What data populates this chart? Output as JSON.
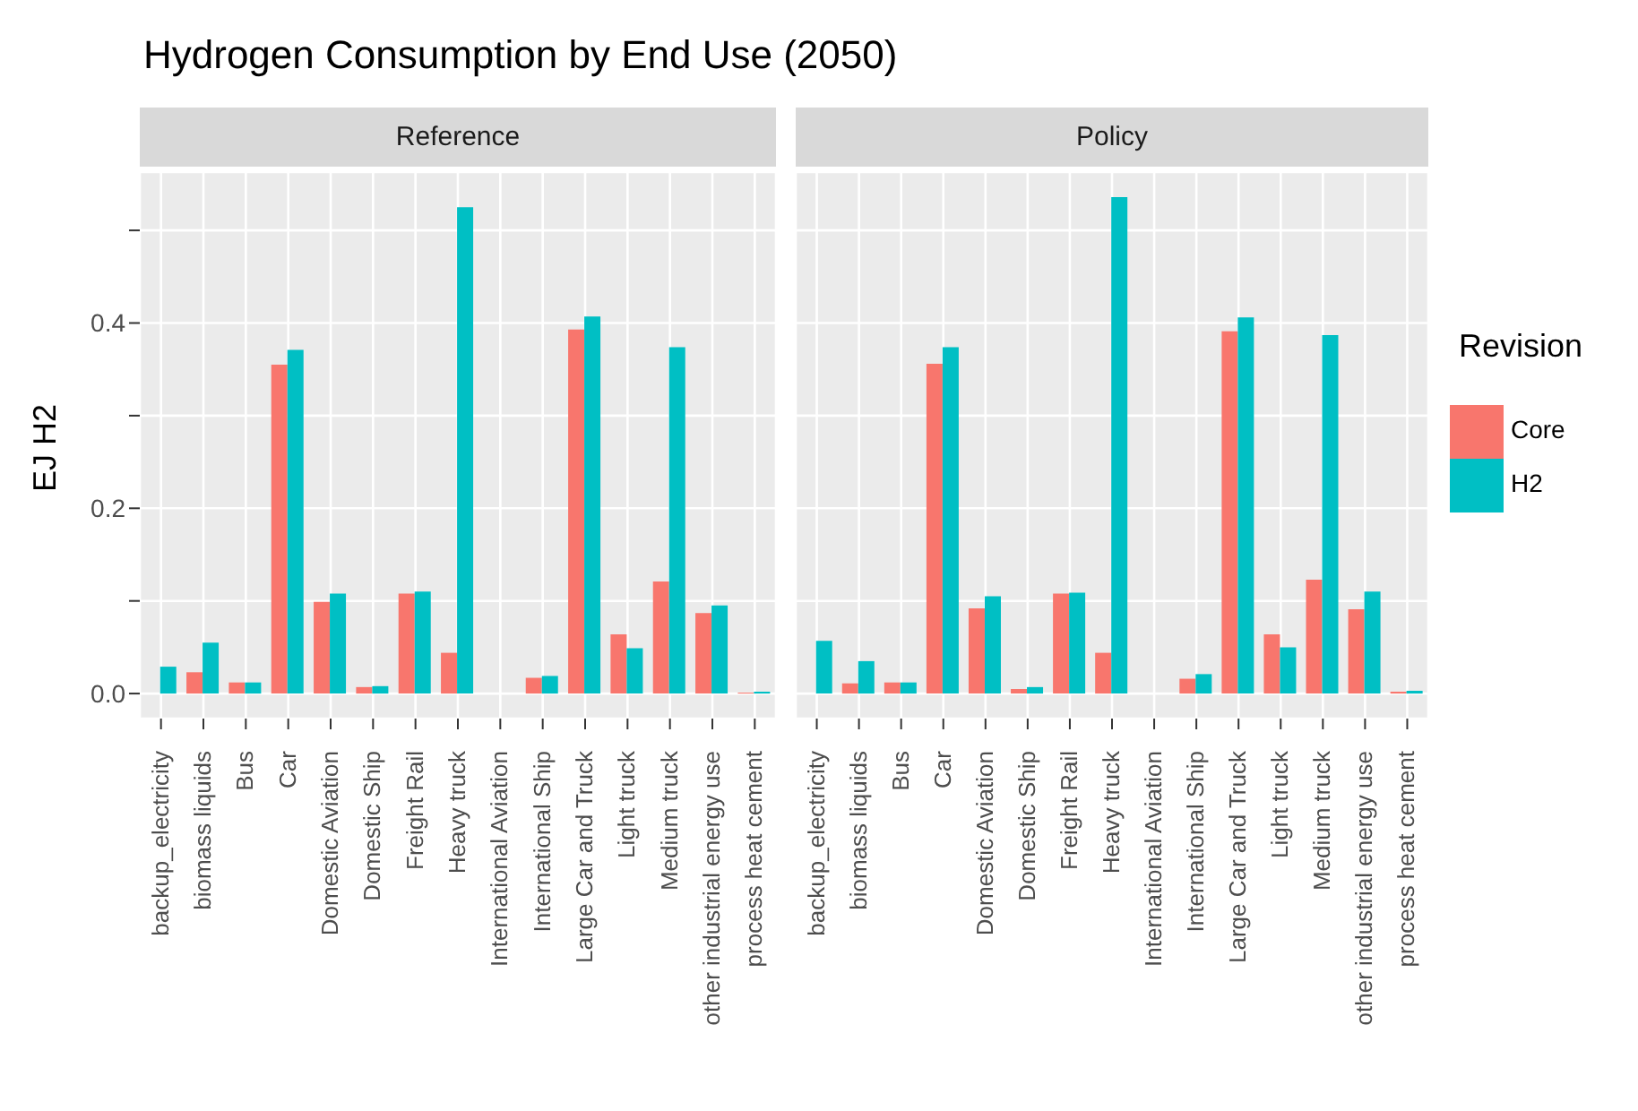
{
  "chart_data": [
    {
      "type": "bar",
      "title": "Hydrogen Consumption by End Use (2050)",
      "subtitle": "Reference",
      "ylabel": "EJ H2",
      "categories": [
        "backup_electricity",
        "biomass liquids",
        "Bus",
        "Car",
        "Domestic Aviation",
        "Domestic Ship",
        "Freight Rail",
        "Heavy truck",
        "International Aviation",
        "International Ship",
        "Large Car and Truck",
        "Light truck",
        "Medium truck",
        "other industrial energy use",
        "process heat cement"
      ],
      "series": [
        {
          "color": "#f8766d",
          "values": [
            null,
            0.023,
            0.012,
            0.355,
            0.099,
            0.007,
            0.108,
            0.044,
            0,
            0.017,
            0.393,
            0.064,
            0.121,
            0.087,
            0.001
          ]
        },
        {
          "color": "#00bfc4",
          "values": [
            0.029,
            0.055,
            0.012,
            0.371,
            0.108,
            0.008,
            0.11,
            0.525,
            0,
            0.019,
            0.407,
            0.049,
            0.374,
            0.095,
            0.002
          ]
        }
      ],
      "ylim": [
        -0.027,
        0.563
      ],
      "yticks": [
        {
          "value": 0,
          "label": "0.0"
        },
        {
          "value": 0.1,
          "label": null
        },
        0.2,
        {
          "value": 0.3,
          "label": null
        },
        0.4,
        {
          "value": 0.5,
          "label": null
        }
      ],
      "grid": true,
      "legend": false
    },
    {
      "type": "bar",
      "subtitle": "Policy",
      "legend_title": "Revision",
      "categories": [
        "backup_electricity",
        "biomass liquids",
        "Bus",
        "Car",
        "Domestic Aviation",
        "Domestic Ship",
        "Freight Rail",
        "Heavy truck",
        "International Aviation",
        "International Ship",
        "Large Car and Truck",
        "Light truck",
        "Medium truck",
        "other industrial energy use",
        "process heat cement"
      ],
      "series": [
        {
          "name": "Core",
          "color": "#f8766d",
          "values": [
            null,
            0.011,
            0.012,
            0.356,
            0.092,
            0.005,
            0.108,
            0.044,
            0,
            0.016,
            0.391,
            0.064,
            0.123,
            0.091,
            0.002
          ]
        },
        {
          "name": "H2",
          "color": "#00bfc4",
          "values": [
            0.057,
            0.035,
            0.012,
            0.374,
            0.105,
            0.007,
            0.109,
            0.536,
            0,
            0.021,
            0.406,
            0.05,
            0.387,
            0.11,
            0.003
          ]
        }
      ],
      "ylim": [
        -0.027,
        0.563
      ],
      "yticks": [
        0,
        0.1,
        0.2,
        0.3,
        0.4,
        0.5
      ],
      "grid": true,
      "legend": "right",
      "tick_labels": "x"
    }
  ]
}
